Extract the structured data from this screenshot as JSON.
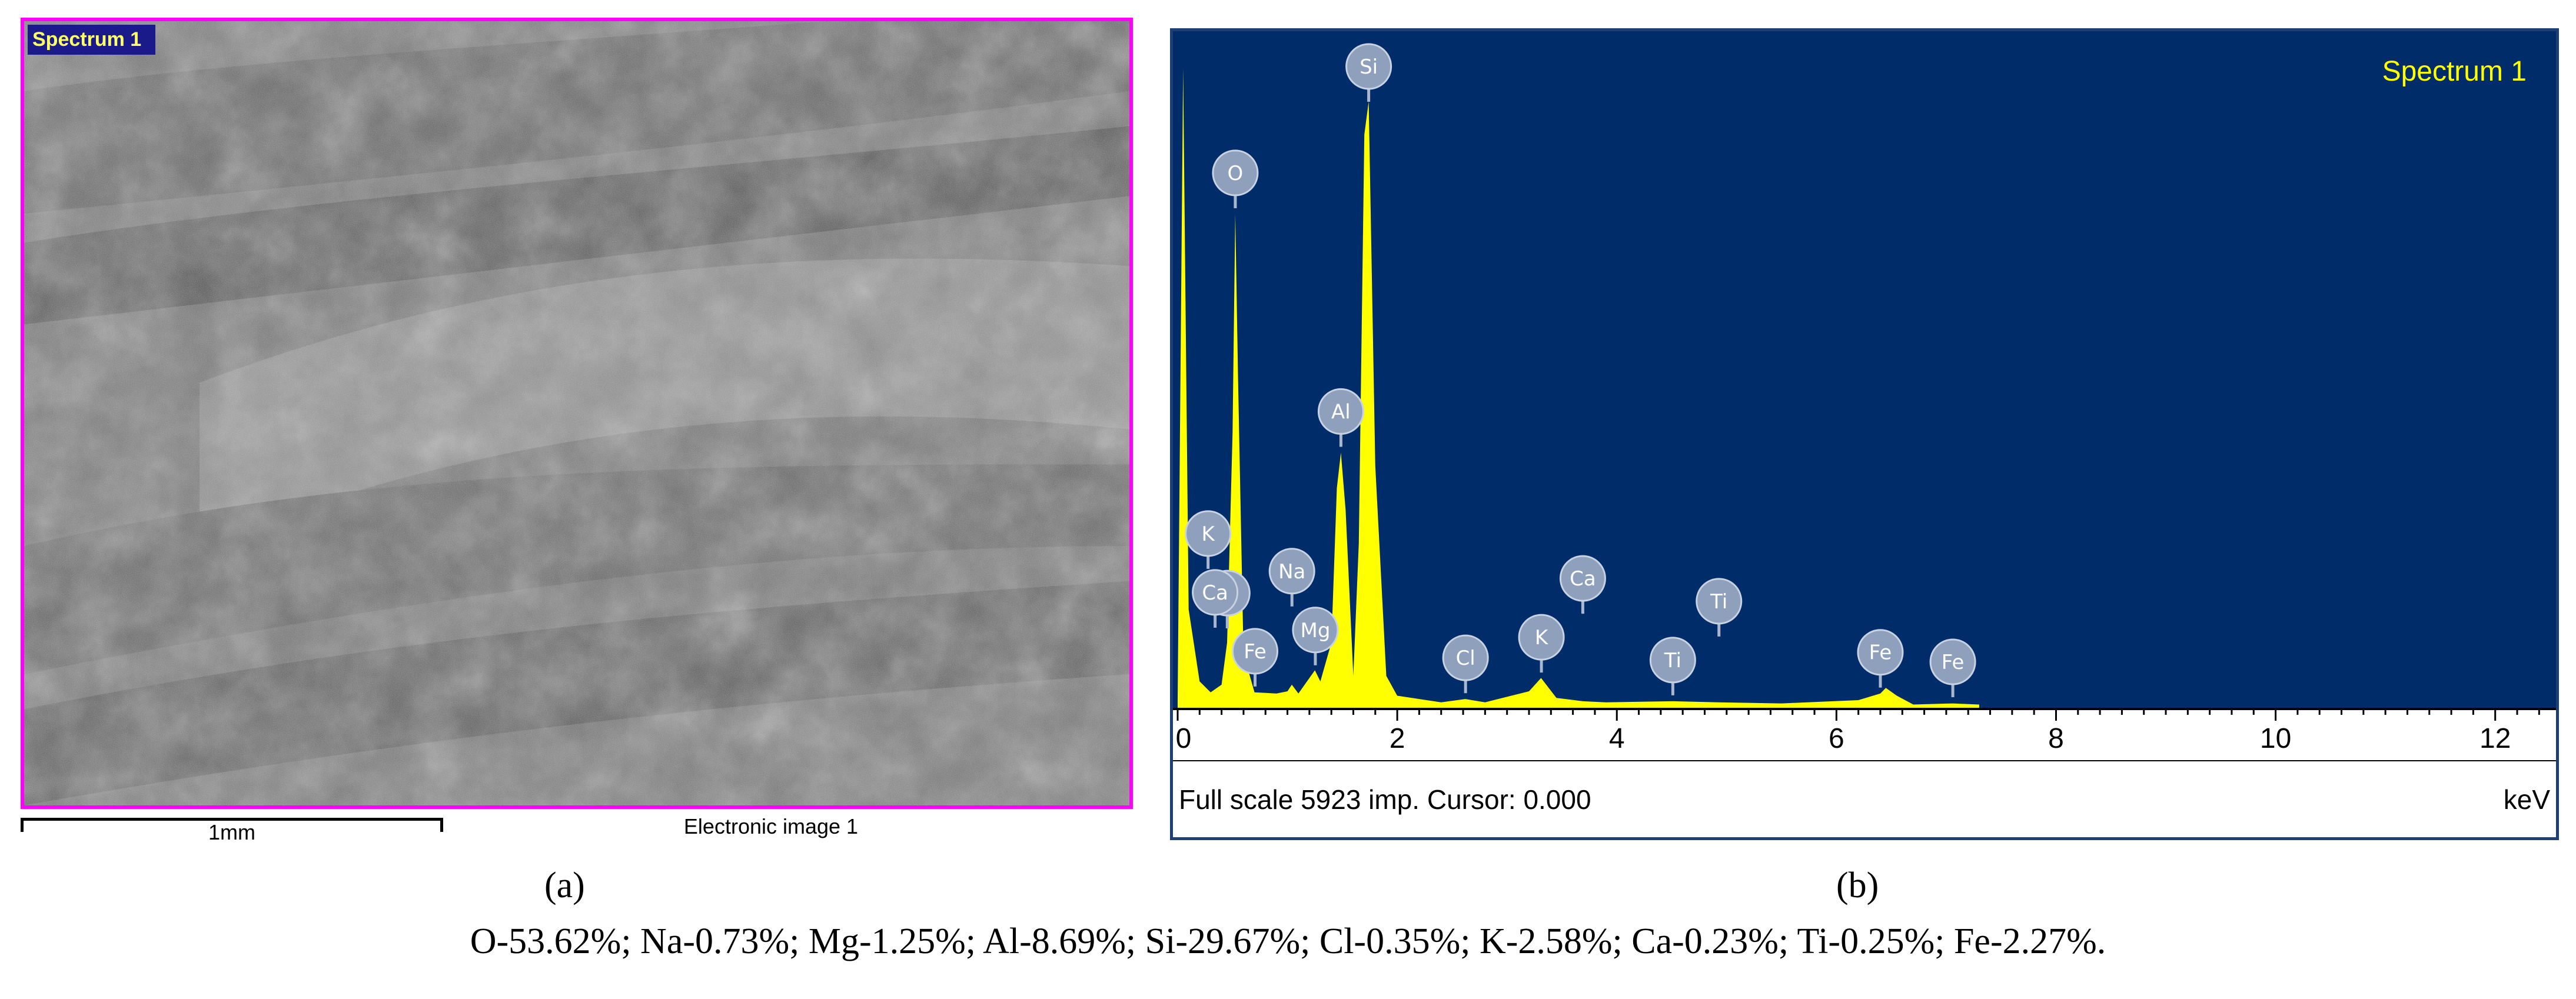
{
  "panel_a": {
    "tag": "Spectrum 1",
    "scale_bar_label": "1mm",
    "image_label": "Electronic image 1",
    "caption": "(a)",
    "frame_color": "#ff00ff"
  },
  "panel_b": {
    "caption": "(b)",
    "footer_left": "Full scale 5923 imp. Cursor: 0.000",
    "footer_right": "keV",
    "plot_bg": "#002d6a",
    "peak_color": "#ffff00"
  },
  "summary": "O-53.62%; Na-0.73%; Mg-1.25%; Al-8.69%; Si-29.67%; Cl-0.35%; K-2.58%; Ca-0.23%; Ti-0.25%; Fe-2.27%.",
  "chart_data": {
    "type": "line",
    "title": "Spectrum 1",
    "xlabel": "keV",
    "ylabel": "",
    "xlim": [
      0,
      12.5
    ],
    "ylim": [
      0,
      5923
    ],
    "x_ticks": [
      0,
      2,
      4,
      6,
      8,
      10,
      12
    ],
    "grid": false,
    "series": [
      {
        "name": "Spectrum 1",
        "x": [
          0,
          0.05,
          0.1,
          0.2,
          0.3,
          0.4,
          0.45,
          0.5,
          0.525,
          0.55,
          0.6,
          0.7,
          0.9,
          1.0,
          1.04,
          1.1,
          1.2,
          1.25,
          1.3,
          1.4,
          1.45,
          1.487,
          1.53,
          1.6,
          1.65,
          1.7,
          1.74,
          1.8,
          1.9,
          2.0,
          2.4,
          2.62,
          2.8,
          3.2,
          3.31,
          3.45,
          3.69,
          3.9,
          4.51,
          4.93,
          5.5,
          6.2,
          6.4,
          6.45,
          6.55,
          6.7,
          7.06,
          7.3
        ],
        "y": [
          80,
          5800,
          900,
          250,
          150,
          220,
          600,
          2500,
          4480,
          3000,
          500,
          150,
          140,
          160,
          220,
          140,
          280,
          350,
          250,
          600,
          2000,
          2320,
          1800,
          300,
          1500,
          5200,
          5500,
          2200,
          300,
          120,
          60,
          90,
          60,
          160,
          280,
          100,
          70,
          60,
          70,
          60,
          50,
          80,
          140,
          190,
          120,
          40,
          50,
          40
        ]
      }
    ],
    "peak_labels": [
      {
        "label": "O",
        "x": 0.525
      },
      {
        "label": "Ti",
        "x": 0.452
      },
      {
        "label": "Fe",
        "x": 0.705
      },
      {
        "label": "Si",
        "x": 1.74
      },
      {
        "label": "Ca",
        "x": 0.341
      },
      {
        "label": "Al",
        "x": 1.487
      },
      {
        "label": "Mg",
        "x": 1.254
      },
      {
        "label": "K",
        "x": 0.277
      },
      {
        "label": "Na",
        "x": 1.041
      },
      {
        "label": "Cl",
        "x": 2.622
      },
      {
        "label": "K",
        "x": 3.313
      },
      {
        "label": "Ca",
        "x": 3.69
      },
      {
        "label": "Ti",
        "x": 4.51
      },
      {
        "label": "Ti",
        "x": 4.93
      },
      {
        "label": "Fe",
        "x": 6.4
      },
      {
        "label": "Fe",
        "x": 7.06
      }
    ]
  }
}
